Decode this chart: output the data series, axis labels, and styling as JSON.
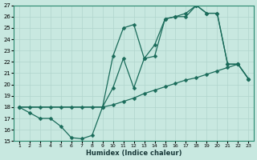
{
  "xlabel": "Humidex (Indice chaleur)",
  "bg_color": "#c8e8e0",
  "grid_color": "#b0d4cc",
  "line_color": "#1a6b5a",
  "xlim_min": 0.5,
  "xlim_max": 23.5,
  "ylim_min": 15,
  "ylim_max": 27,
  "xticks": [
    1,
    2,
    3,
    4,
    5,
    6,
    7,
    8,
    9,
    10,
    11,
    12,
    13,
    14,
    15,
    16,
    17,
    18,
    19,
    20,
    21,
    22,
    23
  ],
  "yticks": [
    15,
    16,
    17,
    18,
    19,
    20,
    21,
    22,
    23,
    24,
    25,
    26,
    27
  ],
  "line1_x": [
    1,
    2,
    3,
    4,
    5,
    6,
    7,
    8,
    9,
    10,
    11,
    12,
    13,
    14,
    15,
    16,
    17,
    18,
    19,
    20,
    21,
    22,
    23
  ],
  "line1_y": [
    18.0,
    17.5,
    17.0,
    17.0,
    16.3,
    15.3,
    15.2,
    15.5,
    18.0,
    19.7,
    22.3,
    19.7,
    22.3,
    22.5,
    25.8,
    26.0,
    26.0,
    27.0,
    26.3,
    26.3,
    21.8,
    21.8,
    20.5
  ],
  "line2_x": [
    1,
    9,
    10,
    11,
    12,
    13,
    14,
    15,
    16,
    17,
    18,
    19,
    20,
    21,
    22,
    23
  ],
  "line2_y": [
    18.0,
    18.0,
    22.5,
    25.0,
    25.3,
    22.3,
    23.5,
    25.8,
    26.0,
    26.3,
    27.0,
    26.3,
    26.3,
    21.8,
    21.8,
    20.5
  ],
  "line3_x": [
    1,
    2,
    3,
    4,
    5,
    6,
    7,
    8,
    9,
    10,
    11,
    12,
    13,
    14,
    15,
    16,
    17,
    18,
    19,
    20,
    21,
    22,
    23
  ],
  "line3_y": [
    18.0,
    18.0,
    18.0,
    18.0,
    18.0,
    18.0,
    18.0,
    18.0,
    18.0,
    18.2,
    18.5,
    18.8,
    19.2,
    19.5,
    19.8,
    20.1,
    20.4,
    20.6,
    20.9,
    21.2,
    21.5,
    21.8,
    20.5
  ]
}
